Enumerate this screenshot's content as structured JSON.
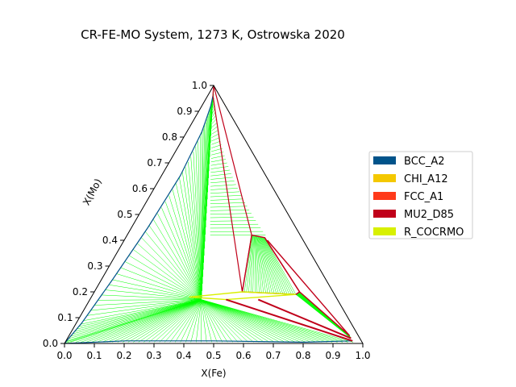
{
  "chart_data": {
    "type": "ternary",
    "title": "CR-FE-MO System, 1273 K, Ostrowska 2020",
    "xlabel": "X(Fe)",
    "ylabel": "X(Mo)",
    "xlim": [
      0.0,
      1.0
    ],
    "ylim": [
      0.0,
      1.0
    ],
    "x_ticks": [
      "0.0",
      "0.1",
      "0.2",
      "0.3",
      "0.4",
      "0.5",
      "0.6",
      "0.7",
      "0.8",
      "0.9",
      "1.0"
    ],
    "y_ticks": [
      "0.0",
      "0.1",
      "0.2",
      "0.3",
      "0.4",
      "0.5",
      "0.6",
      "0.7",
      "0.8",
      "0.9",
      "1.0"
    ],
    "legend_position": "right",
    "grid": false,
    "series": [
      {
        "name": "BCC_A2",
        "color": "#00538a"
      },
      {
        "name": "CHI_A12",
        "color": "#f4c800"
      },
      {
        "name": "FCC_A1",
        "color": "#ff3a1a"
      },
      {
        "name": "MU2_D85",
        "color": "#c0001a"
      },
      {
        "name": "R_COCRMO",
        "color": "#d8f000"
      }
    ],
    "tie_line_color": "#00ff00",
    "phase_boundaries": {
      "bcc_left": [
        [
          0.0,
          0.0
        ],
        [
          0.02,
          0.08
        ],
        [
          0.05,
          0.25
        ],
        [
          0.1,
          0.45
        ],
        [
          0.18,
          0.65
        ],
        [
          0.28,
          0.82
        ],
        [
          0.38,
          0.92
        ],
        [
          0.44,
          0.96
        ]
      ],
      "bcc_bottom": [
        [
          0.0,
          0.0
        ],
        [
          0.2,
          0.01
        ],
        [
          0.5,
          0.01
        ],
        [
          0.8,
          0.005
        ],
        [
          0.97,
          0.01
        ]
      ],
      "three_phase_apex": [
        [
          0.44,
          0.96
        ],
        [
          0.62,
          0.2
        ],
        [
          0.72,
          0.42
        ],
        [
          0.5,
          1.0
        ]
      ],
      "mu_phase": [
        [
          0.62,
          0.2
        ],
        [
          0.72,
          0.42
        ],
        [
          0.79,
          0.41
        ],
        [
          0.86,
          0.2
        ],
        [
          0.84,
          0.19
        ]
      ],
      "r_phase": [
        [
          0.4,
          0.18
        ],
        [
          0.62,
          0.2
        ],
        [
          0.84,
          0.19
        ],
        [
          0.55,
          0.17
        ]
      ],
      "mu_right": [
        [
          0.79,
          0.41
        ],
        [
          0.86,
          0.2
        ],
        [
          0.97,
          0.03
        ],
        [
          0.8,
          0.4
        ]
      ],
      "red_lines": [
        [
          [
            0.55,
            0.17
          ],
          [
            0.97,
            0.01
          ]
        ],
        [
          [
            0.68,
            0.17
          ],
          [
            0.97,
            0.02
          ]
        ]
      ]
    }
  }
}
